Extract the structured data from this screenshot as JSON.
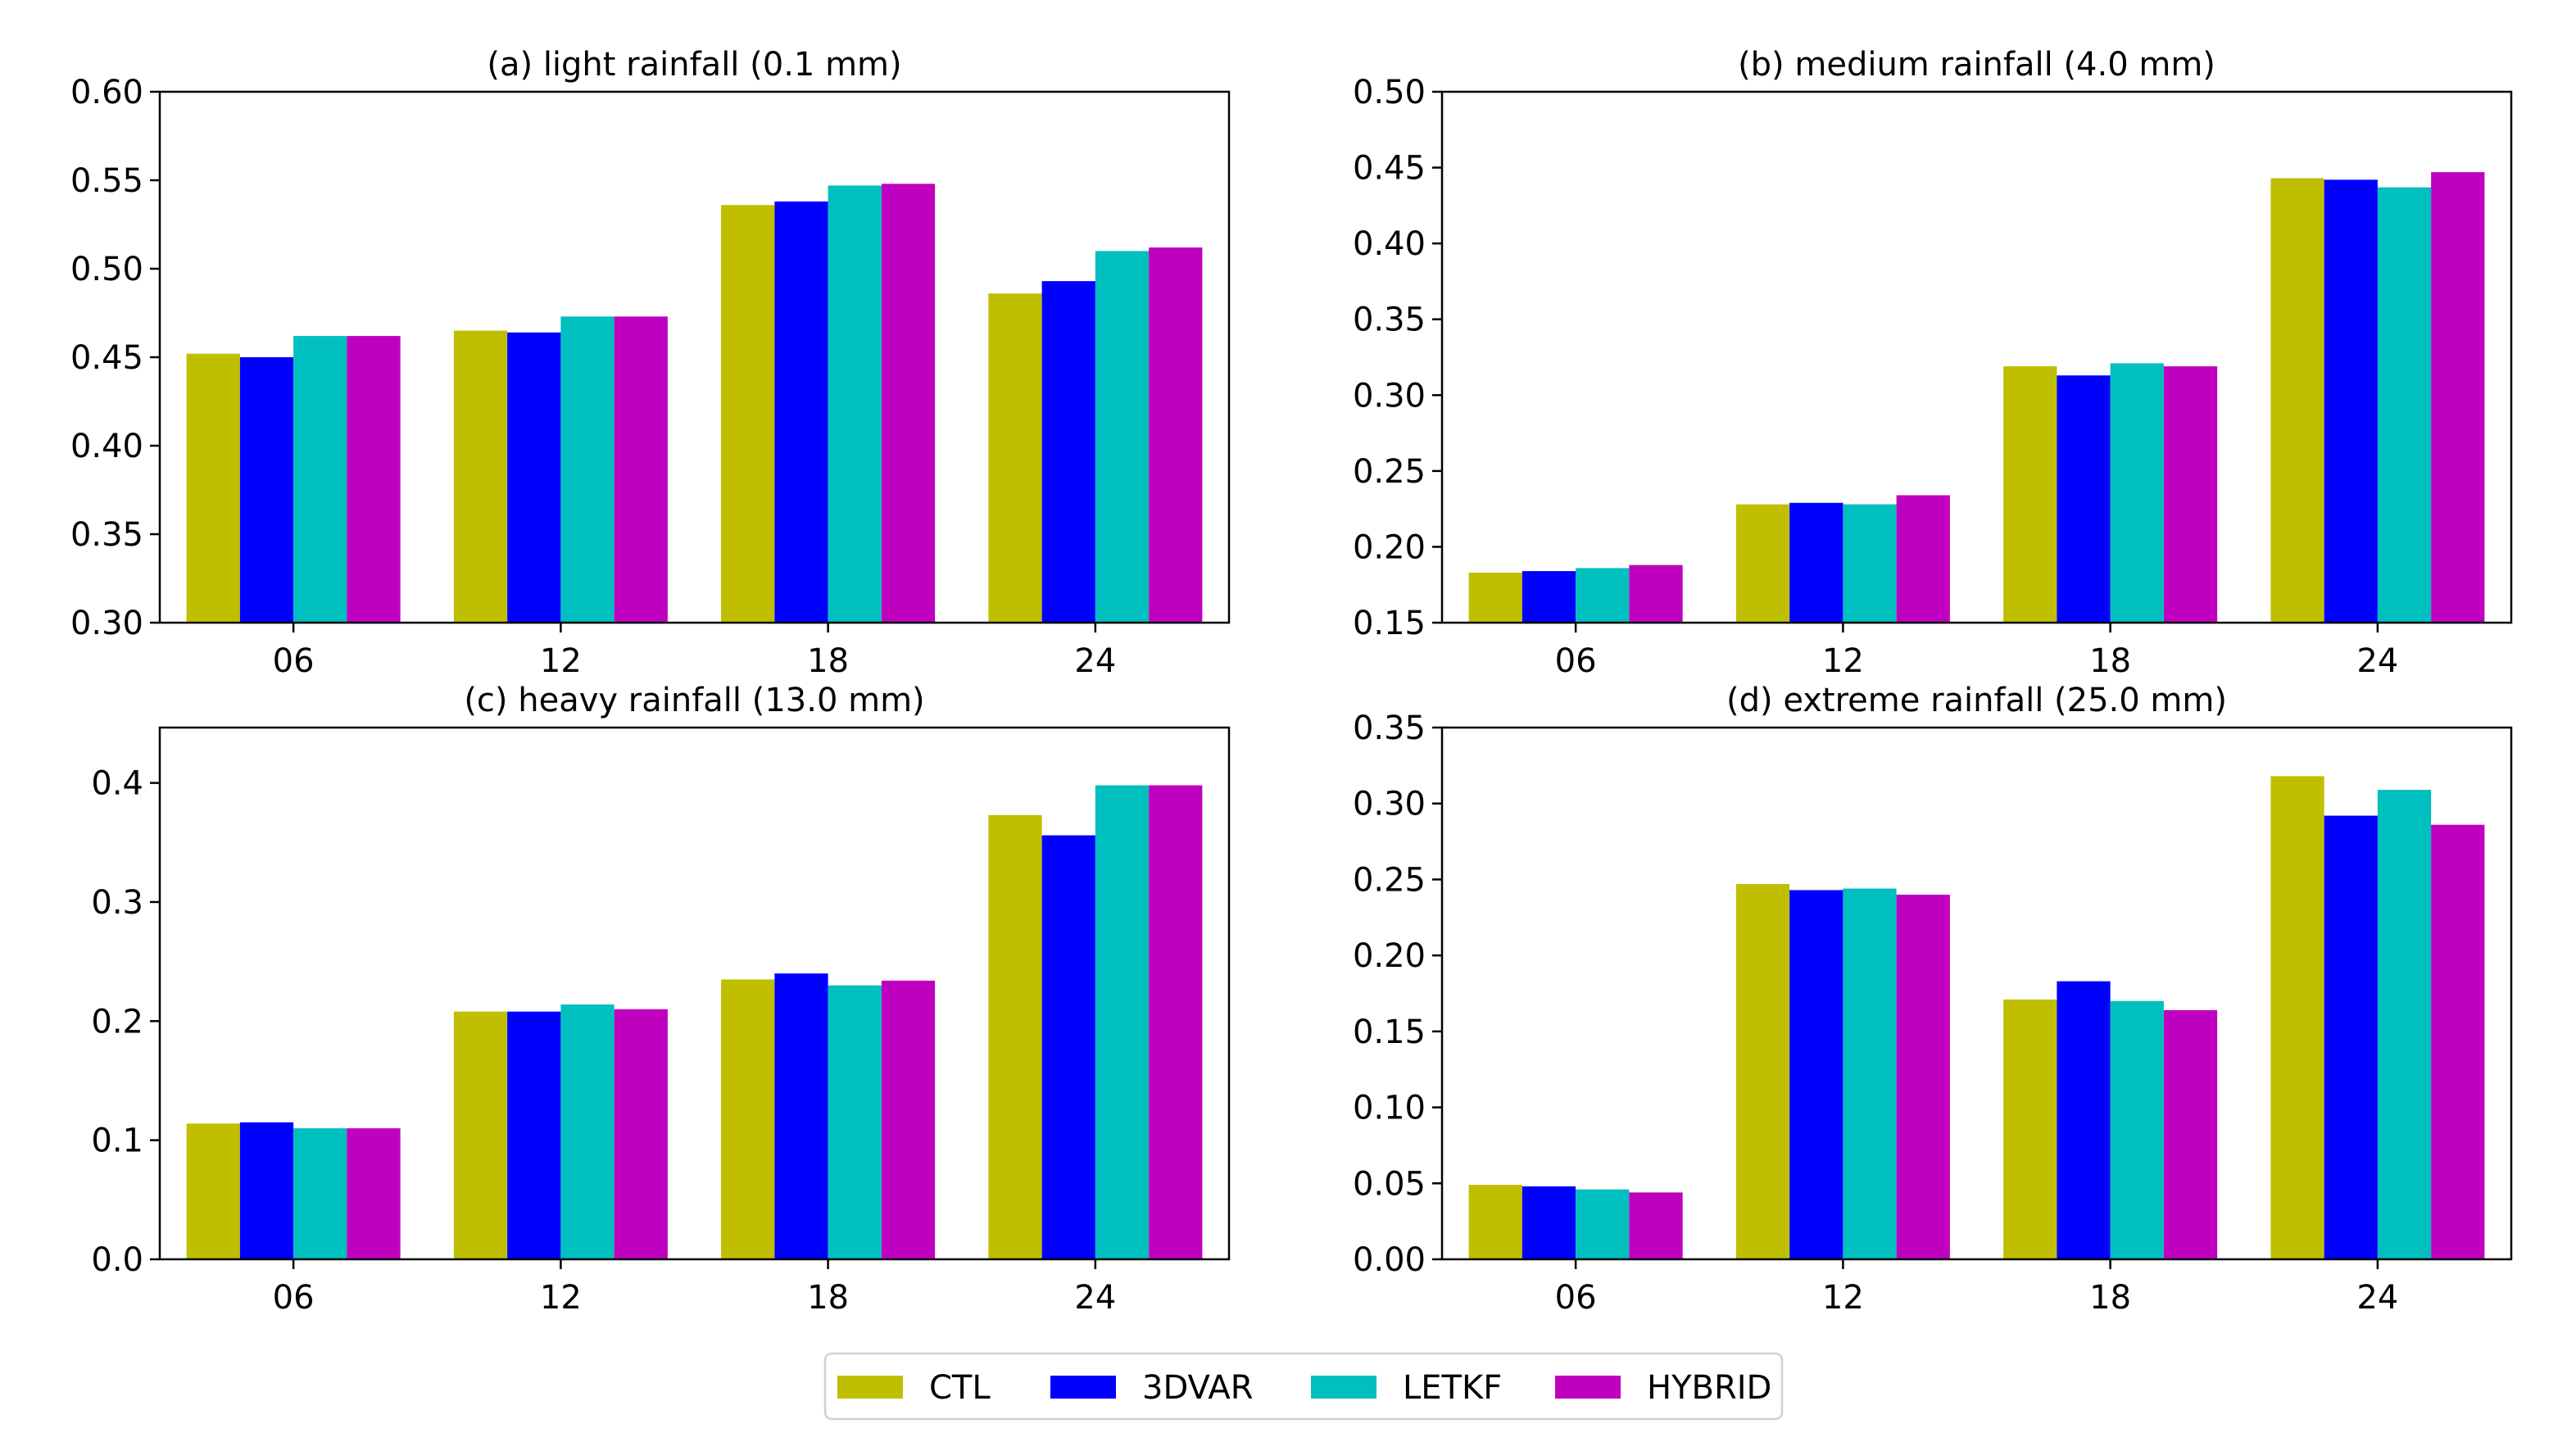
{
  "chart_data": [
    {
      "id": "a",
      "type": "bar",
      "title": "(a) light rainfall (0.1 mm)",
      "categories": [
        "06",
        "12",
        "18",
        "24"
      ],
      "ylim": [
        0.3,
        0.6
      ],
      "yticks": [
        "0.30",
        "0.35",
        "0.40",
        "0.45",
        "0.50",
        "0.55",
        "0.60"
      ],
      "series": [
        {
          "name": "CTL",
          "values": [
            0.452,
            0.465,
            0.536,
            0.486
          ]
        },
        {
          "name": "3DVAR",
          "values": [
            0.45,
            0.464,
            0.538,
            0.493
          ]
        },
        {
          "name": "LETKF",
          "values": [
            0.462,
            0.473,
            0.547,
            0.51
          ]
        },
        {
          "name": "HYBRID",
          "values": [
            0.462,
            0.473,
            0.548,
            0.512
          ]
        }
      ]
    },
    {
      "id": "b",
      "type": "bar",
      "title": "(b) medium rainfall (4.0 mm)",
      "categories": [
        "06",
        "12",
        "18",
        "24"
      ],
      "ylim": [
        0.15,
        0.5
      ],
      "yticks": [
        "0.15",
        "0.20",
        "0.25",
        "0.30",
        "0.35",
        "0.40",
        "0.45",
        "0.50"
      ],
      "series": [
        {
          "name": "CTL",
          "values": [
            0.183,
            0.228,
            0.319,
            0.443
          ]
        },
        {
          "name": "3DVAR",
          "values": [
            0.184,
            0.229,
            0.313,
            0.442
          ]
        },
        {
          "name": "LETKF",
          "values": [
            0.186,
            0.228,
            0.321,
            0.437
          ]
        },
        {
          "name": "HYBRID",
          "values": [
            0.188,
            0.234,
            0.319,
            0.447
          ]
        }
      ]
    },
    {
      "id": "c",
      "type": "bar",
      "title": "(c) heavy rainfall (13.0 mm)",
      "categories": [
        "06",
        "12",
        "18",
        "24"
      ],
      "ylim": [
        0.0,
        0.4465
      ],
      "yticks": [
        "0.0",
        "0.1",
        "0.2",
        "0.3",
        "0.4"
      ],
      "series": [
        {
          "name": "CTL",
          "values": [
            0.114,
            0.208,
            0.235,
            0.373
          ]
        },
        {
          "name": "3DVAR",
          "values": [
            0.115,
            0.208,
            0.24,
            0.356
          ]
        },
        {
          "name": "LETKF",
          "values": [
            0.11,
            0.214,
            0.23,
            0.398
          ]
        },
        {
          "name": "HYBRID",
          "values": [
            0.11,
            0.21,
            0.234,
            0.398
          ]
        }
      ]
    },
    {
      "id": "d",
      "type": "bar",
      "title": "(d) extreme rainfall (25.0 mm)",
      "categories": [
        "06",
        "12",
        "18",
        "24"
      ],
      "ylim": [
        0.0,
        0.35
      ],
      "yticks": [
        "0.00",
        "0.05",
        "0.10",
        "0.15",
        "0.20",
        "0.25",
        "0.30",
        "0.35"
      ],
      "series": [
        {
          "name": "CTL",
          "values": [
            0.049,
            0.247,
            0.171,
            0.318
          ]
        },
        {
          "name": "3DVAR",
          "values": [
            0.048,
            0.243,
            0.183,
            0.292
          ]
        },
        {
          "name": "LETKF",
          "values": [
            0.046,
            0.244,
            0.17,
            0.309
          ]
        },
        {
          "name": "HYBRID",
          "values": [
            0.044,
            0.24,
            0.164,
            0.286
          ]
        }
      ]
    }
  ],
  "legend": {
    "placement": "bottom-center",
    "items": [
      {
        "name": "CTL",
        "color": "#bfbf00"
      },
      {
        "name": "3DVAR",
        "color": "#0000ff"
      },
      {
        "name": "LETKF",
        "color": "#00bfbf"
      },
      {
        "name": "HYBRID",
        "color": "#bf00bf"
      }
    ]
  }
}
